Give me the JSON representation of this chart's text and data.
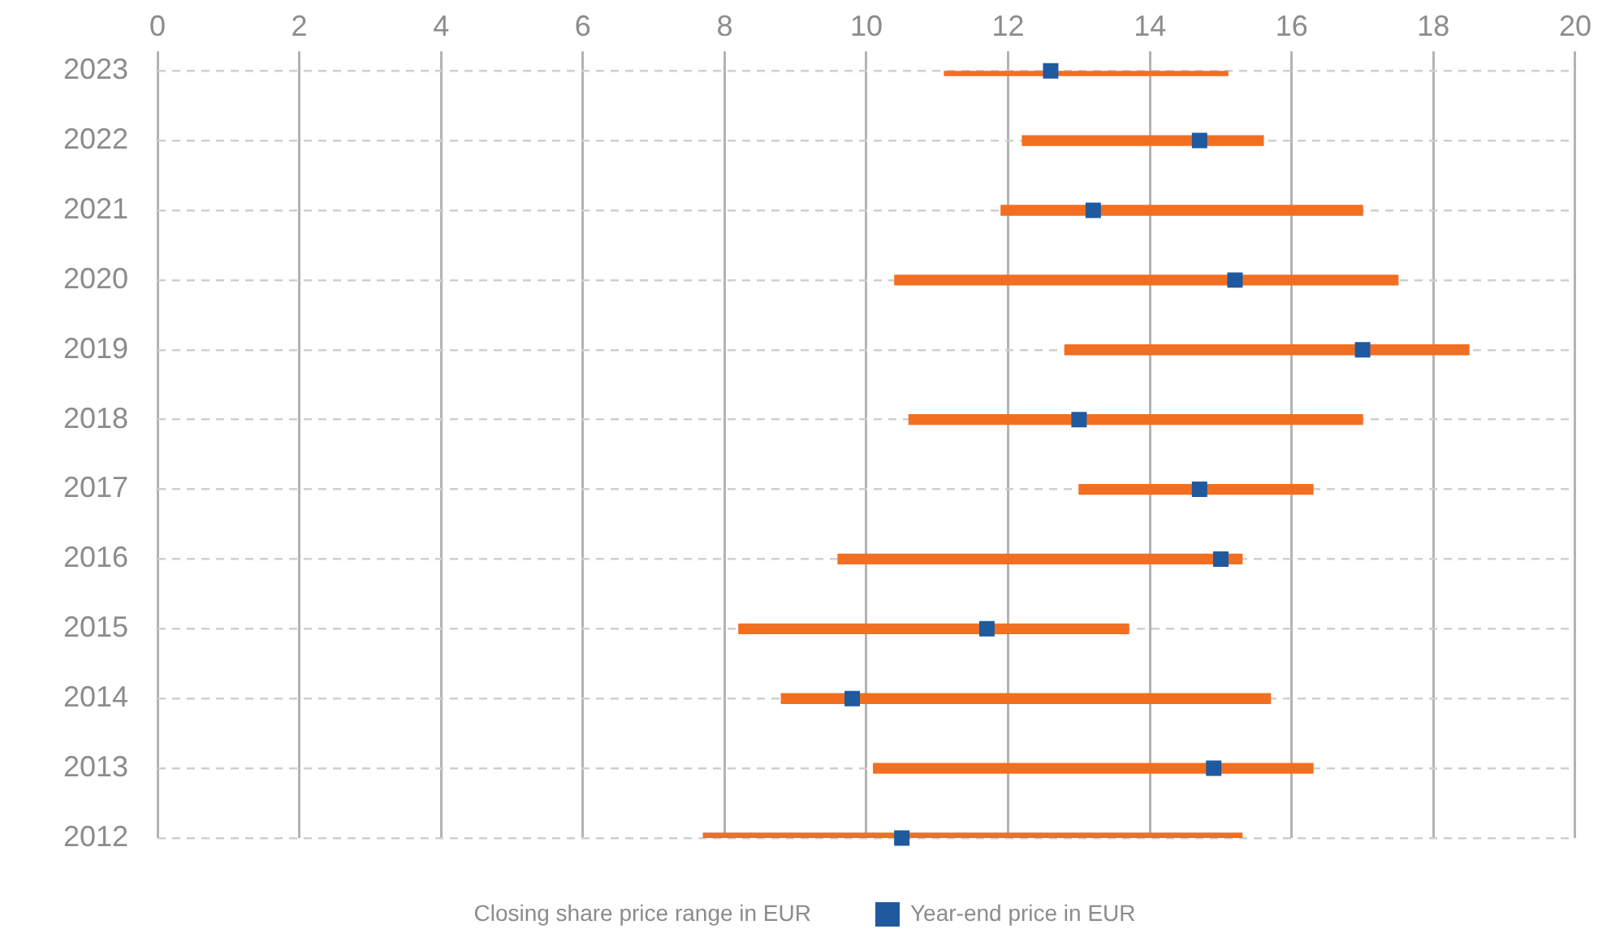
{
  "chart_data": {
    "type": "bar",
    "orientation": "horizontal",
    "categories": [
      "2023",
      "2022",
      "2021",
      "2020",
      "2019",
      "2018",
      "2017",
      "2016",
      "2015",
      "2014",
      "2013",
      "2012"
    ],
    "series": [
      {
        "name": "Closing share price range in EUR",
        "type": "bar",
        "color": "#f26f21",
        "base": [
          11.1,
          12.2,
          11.9,
          10.4,
          12.8,
          10.6,
          13.0,
          9.6,
          8.2,
          8.8,
          10.1,
          7.7
        ],
        "values": [
          4.0,
          3.4,
          5.1,
          7.1,
          5.7,
          6.4,
          3.3,
          5.7,
          5.5,
          6.9,
          6.2,
          7.6
        ]
      },
      {
        "name": "Year-end price in EUR",
        "type": "scatter",
        "color": "#1f5a9e",
        "marker": "square",
        "values": [
          12.6,
          14.7,
          13.2,
          15.2,
          17.0,
          13.0,
          14.7,
          15.0,
          11.7,
          9.8,
          14.9,
          10.5
        ]
      }
    ],
    "xlim": [
      0,
      20
    ],
    "xticks": [
      0,
      2,
      4,
      6,
      8,
      10,
      12,
      14,
      16,
      18,
      20
    ],
    "grid": true,
    "legend": "bottom"
  }
}
